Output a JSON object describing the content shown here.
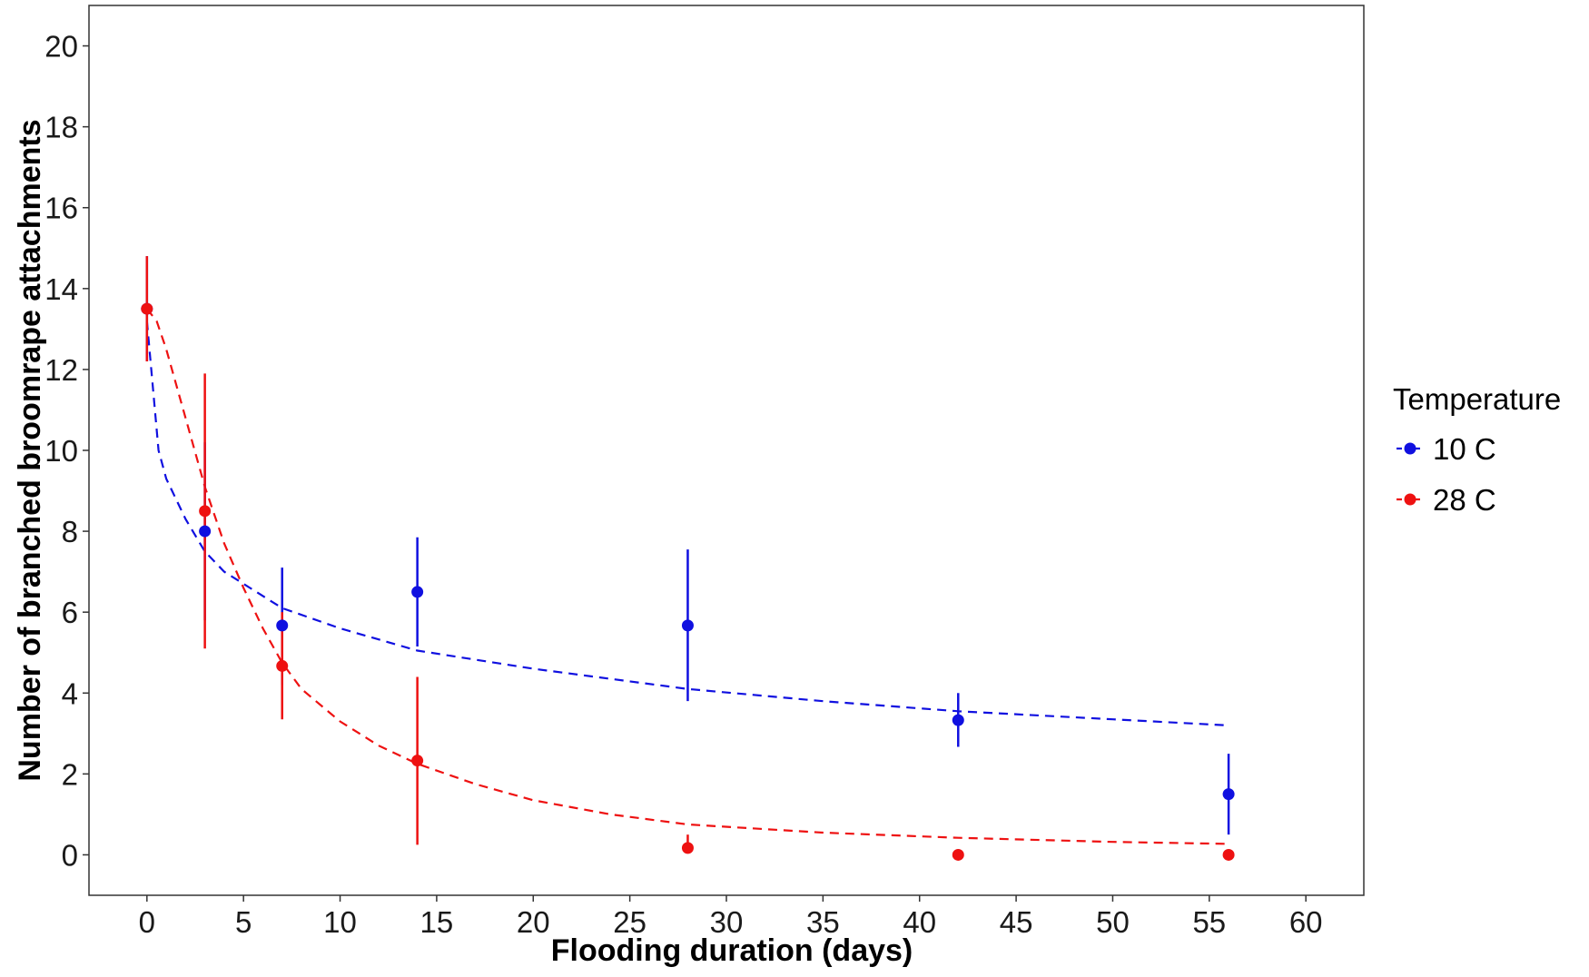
{
  "chart_data": {
    "type": "scatter",
    "xlabel": "Flooding duration (days)",
    "ylabel": "Number of branched broomrape attachments",
    "xlim": [
      -3,
      63
    ],
    "ylim": [
      -1,
      21
    ],
    "xticks": [
      0,
      5,
      10,
      15,
      20,
      25,
      30,
      35,
      40,
      45,
      50,
      55,
      60
    ],
    "yticks": [
      0,
      2,
      4,
      6,
      8,
      10,
      12,
      14,
      16,
      18,
      20
    ],
    "grid": false,
    "legend": {
      "title": "Temperature",
      "placement": "right"
    },
    "series": [
      {
        "name": "10 C",
        "color": "#1010e0",
        "points": [
          {
            "x": 0,
            "y": 13.5,
            "ymin": 12.2,
            "ymax": 14.8
          },
          {
            "x": 3,
            "y": 8.0,
            "ymin": 5.8,
            "ymax": 10.2
          },
          {
            "x": 7,
            "y": 5.67,
            "ymin": 4.2,
            "ymax": 7.1
          },
          {
            "x": 14,
            "y": 6.5,
            "ymin": 5.15,
            "ymax": 7.85
          },
          {
            "x": 28,
            "y": 5.67,
            "ymin": 3.8,
            "ymax": 7.55
          },
          {
            "x": 42,
            "y": 3.33,
            "ymin": 2.67,
            "ymax": 4.0
          },
          {
            "x": 56,
            "y": 1.5,
            "ymin": 0.5,
            "ymax": 2.5
          }
        ],
        "fit": {
          "style": "dashed",
          "points": [
            [
              0,
              13.2
            ],
            [
              0.3,
              11.6
            ],
            [
              0.6,
              10.0
            ],
            [
              1,
              9.3
            ],
            [
              2,
              8.3
            ],
            [
              3,
              7.5
            ],
            [
              4,
              7.0
            ],
            [
              5,
              6.7
            ],
            [
              7,
              6.1
            ],
            [
              10,
              5.6
            ],
            [
              14,
              5.05
            ],
            [
              20,
              4.6
            ],
            [
              28,
              4.1
            ],
            [
              35,
              3.8
            ],
            [
              42,
              3.55
            ],
            [
              50,
              3.35
            ],
            [
              56,
              3.2
            ]
          ]
        }
      },
      {
        "name": "28 C",
        "color": "#ee1111",
        "points": [
          {
            "x": 0,
            "y": 13.5,
            "ymin": 12.2,
            "ymax": 14.8
          },
          {
            "x": 3,
            "y": 8.5,
            "ymin": 5.1,
            "ymax": 11.9
          },
          {
            "x": 7,
            "y": 4.67,
            "ymin": 3.35,
            "ymax": 6.0
          },
          {
            "x": 14,
            "y": 2.33,
            "ymin": 0.25,
            "ymax": 4.4
          },
          {
            "x": 28,
            "y": 0.17,
            "ymin": 0.05,
            "ymax": 0.5
          },
          {
            "x": 42,
            "y": 0.0,
            "ymin": 0.0,
            "ymax": 0.0
          },
          {
            "x": 56,
            "y": 0.0,
            "ymin": 0.0,
            "ymax": 0.0
          }
        ],
        "fit": {
          "style": "dashed",
          "points": [
            [
              0,
              13.5
            ],
            [
              0.5,
              13.2
            ],
            [
              1,
              12.5
            ],
            [
              2,
              10.8
            ],
            [
              3,
              9.1
            ],
            [
              4,
              7.7
            ],
            [
              5,
              6.6
            ],
            [
              6,
              5.6
            ],
            [
              7,
              4.75
            ],
            [
              8,
              4.1
            ],
            [
              10,
              3.3
            ],
            [
              12,
              2.7
            ],
            [
              14,
              2.25
            ],
            [
              17,
              1.75
            ],
            [
              20,
              1.35
            ],
            [
              24,
              1.0
            ],
            [
              28,
              0.75
            ],
            [
              35,
              0.55
            ],
            [
              42,
              0.42
            ],
            [
              50,
              0.32
            ],
            [
              56,
              0.27
            ]
          ]
        }
      }
    ]
  }
}
